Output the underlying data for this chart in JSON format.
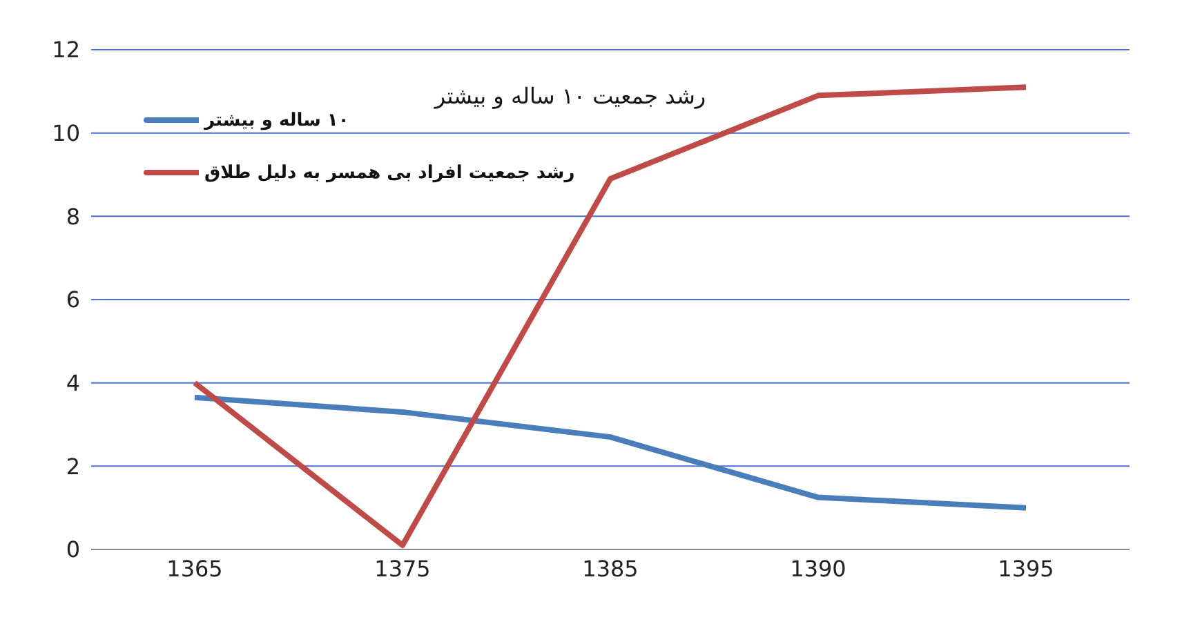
{
  "chart_data": {
    "type": "line",
    "title": "رشد جمعیت ۱۰ ساله و بیشتر",
    "categories": [
      "1365",
      "1375",
      "1385",
      "1390",
      "1395"
    ],
    "series": [
      {
        "name": "۱۰ ساله و بیشتر",
        "color": "#4a7ebb",
        "values": [
          3.65,
          3.3,
          2.7,
          1.25,
          1.0
        ]
      },
      {
        "name": "رشد جمعیت افراد بی همسر به دلیل طلاق",
        "color": "#be4b48",
        "values": [
          4.0,
          0.1,
          8.9,
          10.9,
          11.1
        ]
      }
    ],
    "ylim": [
      0,
      12
    ],
    "yticks": [
      0,
      2,
      4,
      6,
      8,
      10,
      12
    ],
    "grid": "y",
    "legend": "top left",
    "marker": "none",
    "line_style": "solid"
  }
}
